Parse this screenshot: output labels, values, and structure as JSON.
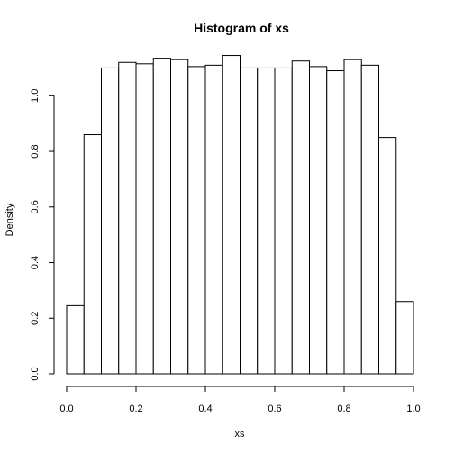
{
  "chart_data": {
    "type": "bar",
    "title": "Histogram of xs",
    "xlabel": "xs",
    "ylabel": "Density",
    "bin_edges": [
      0.0,
      0.05,
      0.1,
      0.15,
      0.2,
      0.25,
      0.3,
      0.35,
      0.4,
      0.45,
      0.5,
      0.55,
      0.6,
      0.65,
      0.7,
      0.75,
      0.8,
      0.85,
      0.9,
      0.95,
      1.0
    ],
    "values": [
      0.245,
      0.86,
      1.1,
      1.12,
      1.115,
      1.135,
      1.13,
      1.105,
      1.11,
      1.145,
      1.1,
      1.1,
      1.1,
      1.125,
      1.105,
      1.09,
      1.13,
      1.11,
      0.85,
      0.26
    ],
    "xlim": [
      0.0,
      1.0
    ],
    "ylim": [
      0.0,
      1.15
    ],
    "x_ticks": [
      0.0,
      0.2,
      0.4,
      0.6,
      0.8,
      1.0
    ],
    "x_tick_labels": [
      "0.0",
      "0.2",
      "0.4",
      "0.6",
      "0.8",
      "1.0"
    ],
    "y_ticks": [
      0.0,
      0.2,
      0.4,
      0.6,
      0.8,
      1.0
    ],
    "y_tick_labels": [
      "0.0",
      "0.2",
      "0.4",
      "0.6",
      "0.8",
      "1.0"
    ],
    "grid": false,
    "colors": {
      "bar_fill": "#ffffff",
      "bar_stroke": "#000000",
      "text": "#000000"
    }
  }
}
